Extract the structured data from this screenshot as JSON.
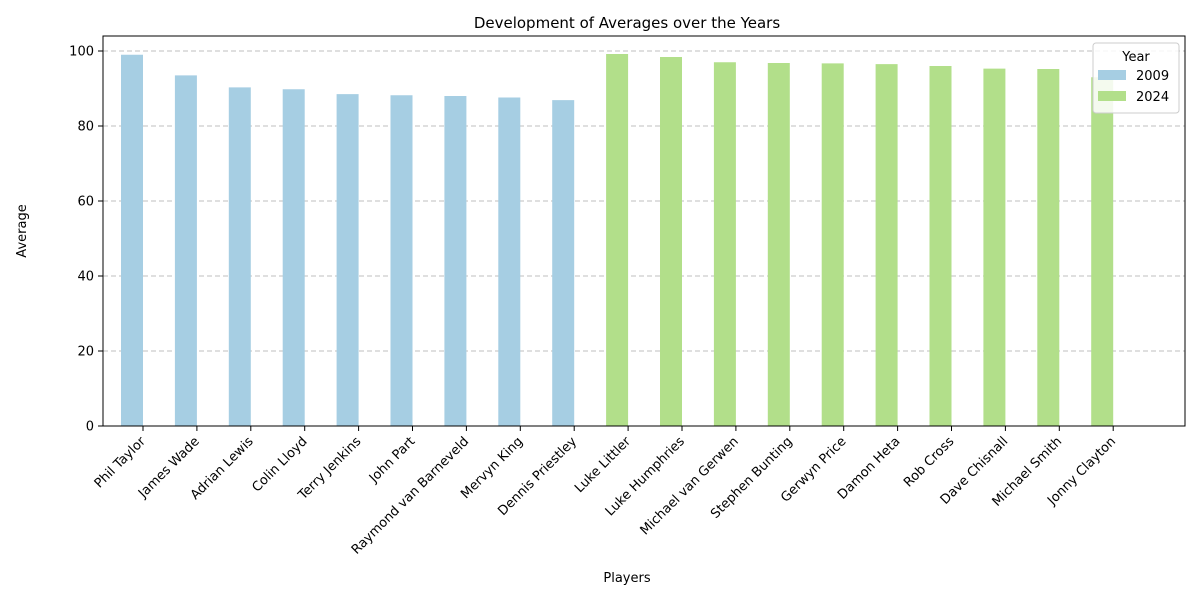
{
  "chart_data": {
    "type": "bar",
    "title": "Development of Averages over the Years",
    "xlabel": "Players",
    "ylabel": "Average",
    "ylim": [
      0,
      104
    ],
    "yticks": [
      0,
      20,
      40,
      60,
      80,
      100
    ],
    "grid": "y dashed",
    "legend": {
      "title": "Year",
      "placement": "top-right"
    },
    "series": [
      {
        "name": "2009",
        "color": "#a6cee3",
        "categories": [
          "Phil Taylor",
          "James Wade",
          "Adrian Lewis",
          "Colin Lloyd",
          "Terry Jenkins",
          "John Part",
          "Raymond van Barneveld",
          "Mervyn King",
          "Dennis Priestley"
        ],
        "values": [
          99.0,
          93.5,
          90.3,
          89.8,
          88.5,
          88.2,
          88.0,
          87.6,
          86.9
        ]
      },
      {
        "name": "2024",
        "color": "#b2df8a",
        "categories": [
          "Luke Littler",
          "Luke Humphries",
          "Michael van Gerwen",
          "Stephen Bunting",
          "Gerwyn Price",
          "Damon Heta",
          "Rob Cross",
          "Dave Chisnall",
          "Michael Smith",
          "Jonny Clayton"
        ],
        "values": [
          99.2,
          98.4,
          97.0,
          96.8,
          96.7,
          96.5,
          96.0,
          95.3,
          95.2,
          93.0
        ]
      }
    ]
  }
}
